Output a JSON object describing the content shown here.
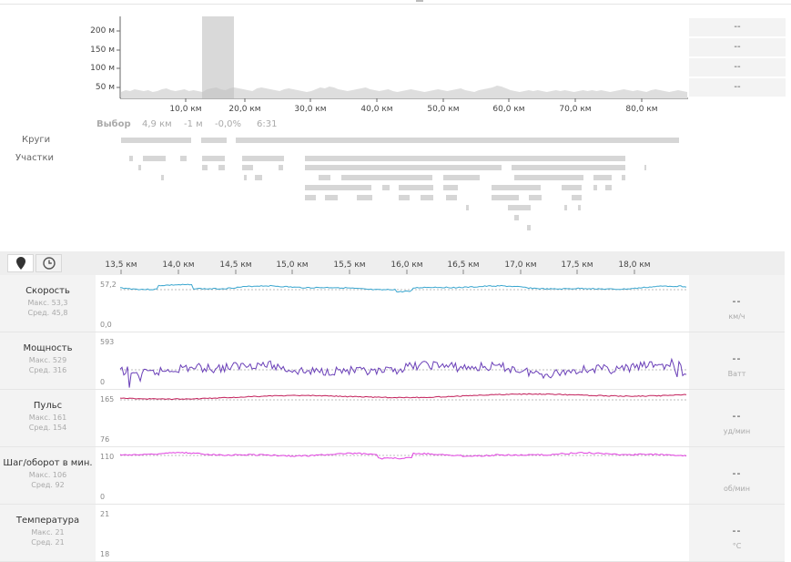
{
  "overview": {
    "y_ticks": [
      "200 м",
      "150 м",
      "100 м",
      "50 м"
    ],
    "x_ticks": [
      "10,0 км",
      "20,0 км",
      "30,0 км",
      "40,0 км",
      "50,0 км",
      "60,0 км",
      "70,0 км",
      "80,0 км"
    ],
    "side_values": [
      "--",
      "--",
      "--",
      "--"
    ],
    "selection": {
      "label": "Выбор",
      "distance": "4,9 км",
      "elevation": "-1 м",
      "grade": "-0,0%",
      "time": "6:31"
    },
    "laps_label": "Круги",
    "segments_label": "Участки"
  },
  "detail": {
    "x_ticks": [
      "13,5 км",
      "14,0 км",
      "14,5 км",
      "15,0 км",
      "15,5 км",
      "16,0 км",
      "16,5 км",
      "17,0 км",
      "17,5 км",
      "18,0 км"
    ],
    "metrics": [
      {
        "name": "Скорость",
        "max": "Макс. 53,3",
        "avg": "Сред. 45,8",
        "ymax": "57,2",
        "ymin": "0,0",
        "value": "--",
        "unit": "км/ч",
        "color": "#3aa6cf"
      },
      {
        "name": "Мощность",
        "max": "Макс. 529",
        "avg": "Сред. 316",
        "ymax": "593",
        "ymin": "0",
        "value": "--",
        "unit": "Ватт",
        "color": "#6a3fb8"
      },
      {
        "name": "Пульс",
        "max": "Макс. 161",
        "avg": "Сред. 154",
        "ymax": "165",
        "ymin": "76",
        "value": "--",
        "unit": "уд/мин",
        "color": "#c21f5a"
      },
      {
        "name": "Шаг/оборот в мин.",
        "max": "Макс. 106",
        "avg": "Сред. 92",
        "ymax": "110",
        "ymin": "0",
        "value": "--",
        "unit": "об/мин",
        "color": "#e040e0"
      },
      {
        "name": "Температура",
        "max": "Макс. 21",
        "avg": "Сред. 21",
        "ymax": "21",
        "ymin": "18",
        "value": "--",
        "unit": "°C",
        "color": "#888888"
      }
    ]
  },
  "icons": {
    "map": "map-pin-icon",
    "time": "clock-icon"
  }
}
